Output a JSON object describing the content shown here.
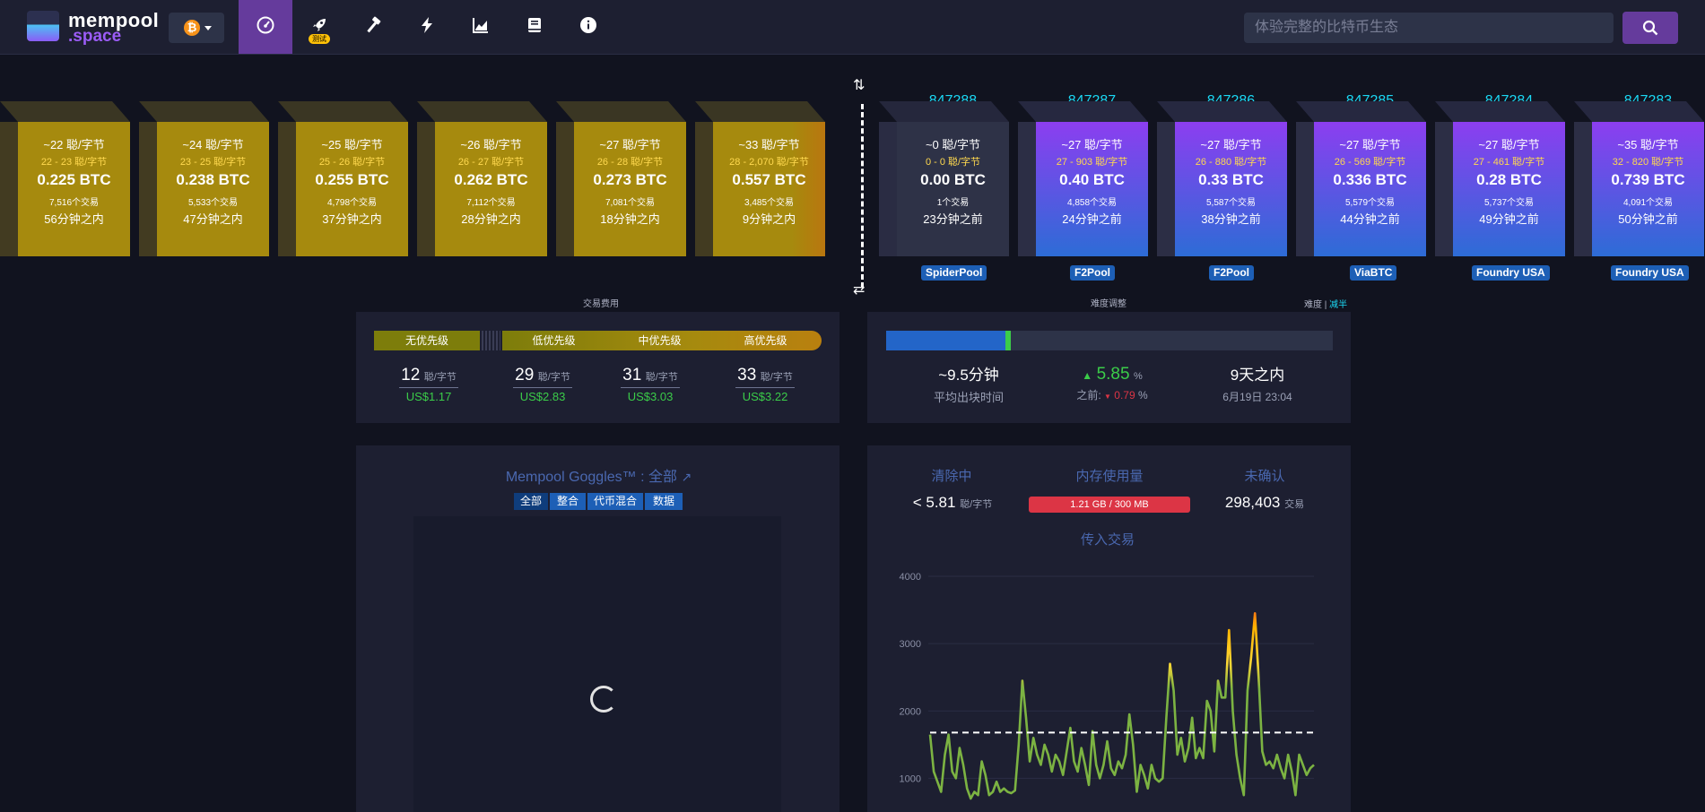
{
  "nav": {
    "logo_line1": "mempool",
    "logo_line2": ".space",
    "network_symbol": "₿",
    "test_badge": "测试",
    "search_placeholder": "体验完整的比特币生态",
    "items": [
      "dashboard-icon",
      "rocket-icon",
      "hammer-icon",
      "lightning-icon",
      "chart-icon",
      "book-icon",
      "info-icon"
    ]
  },
  "pending_blocks": [
    {
      "fee": "~22 聪/字节",
      "range": "22 - 23 聪/字节",
      "size": "0.225 BTC",
      "txs": "7,516个交易",
      "time": "56分钟之内"
    },
    {
      "fee": "~24 聪/字节",
      "range": "23 - 25 聪/字节",
      "size": "0.238 BTC",
      "txs": "5,533个交易",
      "time": "47分钟之内"
    },
    {
      "fee": "~25 聪/字节",
      "range": "25 - 26 聪/字节",
      "size": "0.255 BTC",
      "txs": "4,798个交易",
      "time": "37分钟之内"
    },
    {
      "fee": "~26 聪/字节",
      "range": "26 - 27 聪/字节",
      "size": "0.262 BTC",
      "txs": "7,112个交易",
      "time": "28分钟之内"
    },
    {
      "fee": "~27 聪/字节",
      "range": "26 - 28 聪/字节",
      "size": "0.273 BTC",
      "txs": "7,081个交易",
      "time": "18分钟之内"
    },
    {
      "fee": "~33 聪/字节",
      "range": "28 - 2,070 聪/字节",
      "size": "0.557 BTC",
      "txs": "3,485个交易",
      "time": "9分钟之内"
    }
  ],
  "mined_blocks": [
    {
      "height": "847288",
      "fee": "~0 聪/字节",
      "range": "0 - 0 聪/字节",
      "size": "0.00 BTC",
      "txs": "1个交易",
      "time": "23分钟之前",
      "pool": "SpiderPool"
    },
    {
      "height": "847287",
      "fee": "~27 聪/字节",
      "range": "27 - 903 聪/字节",
      "size": "0.40 BTC",
      "txs": "4,858个交易",
      "time": "24分钟之前",
      "pool": "F2Pool"
    },
    {
      "height": "847286",
      "fee": "~27 聪/字节",
      "range": "26 - 880 聪/字节",
      "size": "0.33 BTC",
      "txs": "5,587个交易",
      "time": "38分钟之前",
      "pool": "F2Pool"
    },
    {
      "height": "847285",
      "fee": "~27 聪/字节",
      "range": "26 - 569 聪/字节",
      "size": "0.336 BTC",
      "txs": "5,579个交易",
      "time": "44分钟之前",
      "pool": "ViaBTC"
    },
    {
      "height": "847284",
      "fee": "~27 聪/字节",
      "range": "27 - 461 聪/字节",
      "size": "0.28 BTC",
      "txs": "5,737个交易",
      "time": "49分钟之前",
      "pool": "Foundry USA"
    },
    {
      "height": "847283",
      "fee": "~35 聪/字节",
      "range": "32 - 820 聪/字节",
      "size": "0.739 BTC",
      "txs": "4,091个交易",
      "time": "50分钟之前",
      "pool": "Foundry USA"
    }
  ],
  "fees": {
    "caption": "交易费用",
    "labels": [
      "无优先级",
      "低优先级",
      "中优先级",
      "高优先级"
    ],
    "values": [
      "12",
      "29",
      "31",
      "33"
    ],
    "unit": "聪/字节",
    "usd": [
      "US$1.17",
      "US$2.83",
      "US$3.03",
      "US$3.22"
    ]
  },
  "difficulty": {
    "caption": "难度调整",
    "mode_label": "难度",
    "mode_link": "减半",
    "progress": 0.28,
    "avg_time": "~9.5分钟",
    "avg_time_label": "平均出块时间",
    "change": "5.85",
    "change_unit": "%",
    "prev_label": "之前:",
    "prev_change": "0.79",
    "prev_unit": "%",
    "eta": "9天之内",
    "eta_date": "6月19日 23:04"
  },
  "goggles": {
    "title": "Mempool Goggles™ : 全部",
    "filters": [
      "全部",
      "整合",
      "代币混合",
      "数据"
    ]
  },
  "mempool": {
    "purging_label": "清除中",
    "purging_value": "< 5.81",
    "purging_unit": "聪/字节",
    "memory_label": "内存使用量",
    "memory_value": "1.21 GB / 300 MB",
    "unconfirmed_label": "未确认",
    "unconfirmed_value": "298,403",
    "unconfirmed_unit": "交易",
    "chart_title": "传入交易"
  },
  "chart_data": {
    "type": "line",
    "title": "传入交易",
    "yticks": [
      1000,
      2000,
      3000,
      4000
    ],
    "ylim": [
      500,
      4000
    ],
    "reference_line": 1680,
    "values": [
      1650,
      1100,
      950,
      800,
      1350,
      1650,
      1100,
      1000,
      1450,
      1200,
      850,
      700,
      800,
      750,
      1250,
      1050,
      750,
      800,
      950,
      800,
      850,
      800,
      780,
      820,
      1500,
      2450,
      1900,
      1250,
      1600,
      1350,
      1200,
      1500,
      1350,
      1100,
      1350,
      1250,
      1050,
      1400,
      1750,
      1250,
      1100,
      1450,
      1200,
      900,
      1700,
      1200,
      1000,
      1200,
      1550,
      1150,
      1050,
      1250,
      1150,
      1350,
      1950,
      1500,
      800,
      1200,
      1050,
      850,
      1200,
      1000,
      950,
      1000,
      1900,
      2700,
      2300,
      1350,
      1600,
      1250,
      1450,
      1900,
      1300,
      1450,
      1300,
      2150,
      2000,
      1400,
      2450,
      2200,
      2200,
      3200,
      2000,
      1350,
      1000,
      750,
      2300,
      2800,
      3450,
      2500,
      1400,
      1200,
      1250,
      1150,
      1350,
      1150,
      1000,
      1350,
      1100,
      750,
      1350,
      1200,
      1050,
      1150,
      1200
    ]
  }
}
